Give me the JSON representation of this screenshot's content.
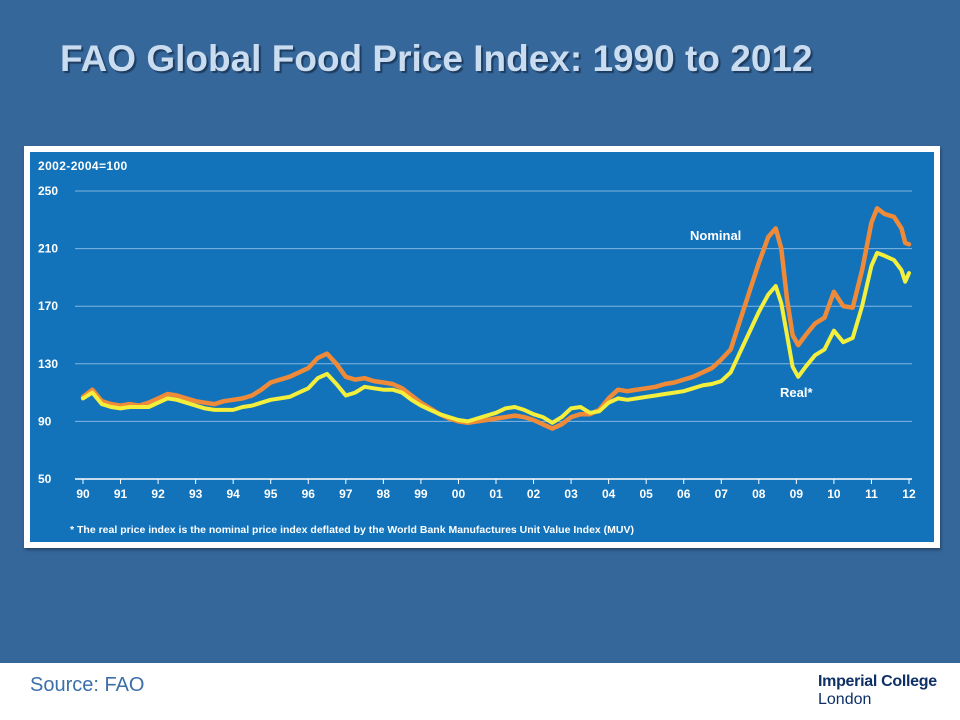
{
  "slide": {
    "source": "Source: FAO",
    "logo": {
      "line1": "Imperial College",
      "line2": "London"
    }
  },
  "colors": {
    "slide_background": "#35679b",
    "chart_background": "#1273bb",
    "title_text": "#c9dcf0",
    "source_text": "#3b70aa",
    "logo_text": "#0e3066"
  },
  "chart_data": {
    "type": "line",
    "title": "FAO Global Food Price Index: 1990 to 2012",
    "unit_note": "2002-2004=100",
    "footnote": "* The real price index is the nominal price index deflated by the World Bank Manufactures Unit Value Index (MUV)",
    "ylim": [
      50,
      250
    ],
    "y_ticks": [
      250,
      210,
      170,
      130,
      90,
      50
    ],
    "y_tick_labels": [
      "250",
      "210",
      "170",
      "130",
      "90",
      "50"
    ],
    "x_range": [
      1990,
      2012
    ],
    "x_ticks": [
      1990,
      1991,
      1992,
      1993,
      1994,
      1995,
      1996,
      1997,
      1998,
      1999,
      2000,
      2001,
      2002,
      2003,
      2004,
      2005,
      2006,
      2007,
      2008,
      2009,
      2010,
      2011,
      2012
    ],
    "x_tick_labels": [
      "90",
      "91",
      "92",
      "93",
      "94",
      "95",
      "96",
      "97",
      "98",
      "99",
      "00",
      "01",
      "02",
      "03",
      "04",
      "05",
      "06",
      "07",
      "08",
      "09",
      "10",
      "11",
      "12"
    ],
    "grid": true,
    "legend_placement": "inline",
    "x": [
      1990,
      1990.25,
      1990.5,
      1990.75,
      1991,
      1991.25,
      1991.5,
      1991.75,
      1992,
      1992.25,
      1992.5,
      1992.75,
      1993,
      1993.25,
      1993.5,
      1993.75,
      1994,
      1994.25,
      1994.5,
      1994.75,
      1995,
      1995.25,
      1995.5,
      1995.75,
      1996,
      1996.25,
      1996.5,
      1996.75,
      1997,
      1997.25,
      1997.5,
      1997.75,
      1998,
      1998.25,
      1998.5,
      1998.75,
      1999,
      1999.25,
      1999.5,
      1999.75,
      2000,
      2000.25,
      2000.5,
      2000.75,
      2001,
      2001.25,
      2001.5,
      2001.75,
      2002,
      2002.25,
      2002.5,
      2002.75,
      2003,
      2003.25,
      2003.5,
      2003.75,
      2004,
      2004.25,
      2004.5,
      2004.75,
      2005,
      2005.25,
      2005.5,
      2005.75,
      2006,
      2006.25,
      2006.5,
      2006.75,
      2007,
      2007.25,
      2007.5,
      2007.75,
      2008,
      2008.25,
      2008.45,
      2008.6,
      2008.75,
      2008.9,
      2009.05,
      2009.25,
      2009.5,
      2009.75,
      2010,
      2010.25,
      2010.5,
      2010.75,
      2011,
      2011.15,
      2011.35,
      2011.6,
      2011.8,
      2011.9,
      2012
    ],
    "series": [
      {
        "name": "Nominal",
        "color": "#ef8a39",
        "values": [
          107,
          112,
          104,
          102,
          101,
          102,
          101,
          103,
          106,
          109,
          108,
          106,
          104,
          103,
          102,
          104,
          105,
          106,
          108,
          112,
          117,
          119,
          121,
          124,
          127,
          134,
          137,
          130,
          121,
          119,
          120,
          118,
          117,
          116,
          113,
          108,
          103,
          99,
          95,
          92,
          90,
          89,
          90,
          91,
          92,
          93,
          94,
          93,
          91,
          88,
          85,
          88,
          93,
          95,
          95,
          98,
          106,
          112,
          111,
          112,
          113,
          114,
          116,
          117,
          119,
          121,
          124,
          127,
          133,
          140,
          160,
          180,
          200,
          218,
          224,
          210,
          175,
          150,
          143,
          150,
          158,
          162,
          180,
          170,
          169,
          195,
          228,
          238,
          234,
          232,
          224,
          214,
          213
        ]
      },
      {
        "name": "Real*",
        "color": "#f3ef3c",
        "values": [
          106,
          110,
          102,
          100,
          99,
          100,
          100,
          100,
          103,
          106,
          105,
          103,
          101,
          99,
          98,
          98,
          98,
          100,
          101,
          103,
          105,
          106,
          107,
          110,
          113,
          120,
          123,
          116,
          108,
          110,
          114,
          113,
          112,
          112,
          110,
          105,
          101,
          98,
          95,
          93,
          91,
          90,
          92,
          94,
          96,
          99,
          100,
          98,
          95,
          93,
          89,
          93,
          99,
          100,
          96,
          97,
          103,
          106,
          105,
          106,
          107,
          108,
          109,
          110,
          111,
          113,
          115,
          116,
          118,
          124,
          138,
          152,
          166,
          178,
          184,
          172,
          150,
          128,
          121,
          128,
          136,
          140,
          153,
          145,
          148,
          170,
          198,
          207,
          205,
          202,
          195,
          187,
          193
        ]
      }
    ]
  }
}
